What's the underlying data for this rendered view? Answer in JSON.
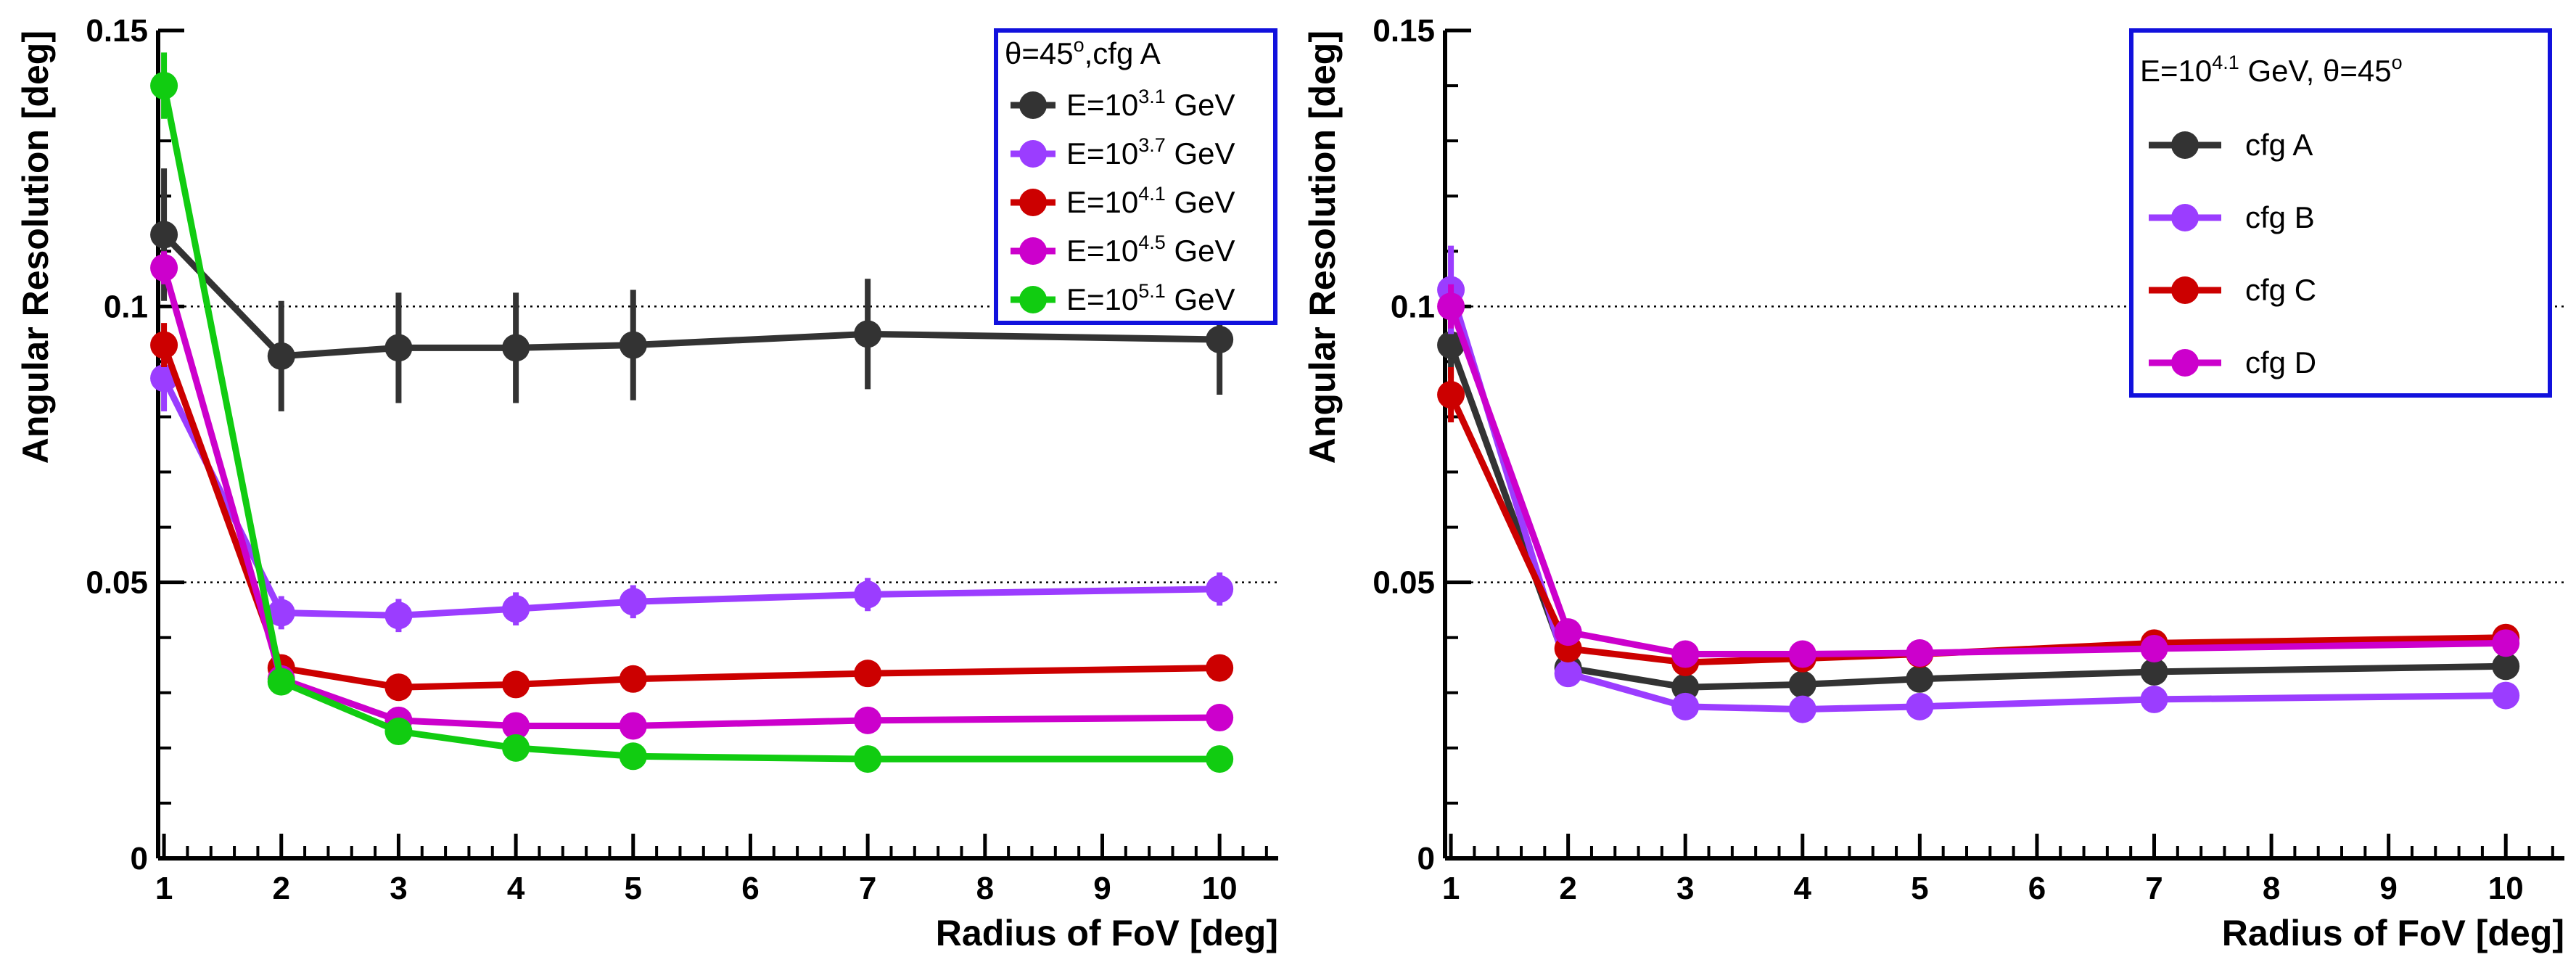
{
  "chart_data": [
    {
      "type": "line",
      "panel": "left",
      "x": [
        1,
        2,
        3,
        4,
        5,
        7,
        10
      ],
      "xlim": [
        0.95,
        10.5
      ],
      "ylim": [
        0,
        0.15
      ],
      "x_ticks": [
        "1",
        "2",
        "3",
        "4",
        "5",
        "6",
        "7",
        "8",
        "9",
        "10"
      ],
      "y_ticks": [
        "0",
        "0.05",
        "0.1",
        "0.15"
      ],
      "gridlines_y": [
        0.05,
        0.1
      ],
      "xlabel": "Radius of FoV [deg]",
      "ylabel": "Angular Resolution [deg]",
      "legend": {
        "position": "top-right",
        "header": {
          "theta": "θ=45",
          "sup": "o",
          "rest": ",cfg A"
        }
      },
      "series": [
        {
          "name": "E=10^3.1 GeV",
          "label_pre": "E=10",
          "label_sup": "3.1",
          "label_post": " GeV",
          "color": "#333333",
          "values": [
            0.113,
            0.091,
            0.0925,
            0.0925,
            0.093,
            0.095,
            0.094
          ],
          "errors": [
            0.012,
            0.01,
            0.01,
            0.01,
            0.01,
            0.01,
            0.01
          ]
        },
        {
          "name": "E=10^3.7 GeV",
          "label_pre": "E=10",
          "label_sup": "3.7",
          "label_post": " GeV",
          "color": "#9b3dff",
          "values": [
            0.087,
            0.0445,
            0.044,
            0.0452,
            0.0465,
            0.0478,
            0.0488
          ],
          "errors": [
            0.006,
            0.003,
            0.003,
            0.003,
            0.003,
            0.003,
            0.003
          ]
        },
        {
          "name": "E=10^4.1 GeV",
          "label_pre": "E=10",
          "label_sup": "4.1",
          "label_post": " GeV",
          "color": "#cc0000",
          "values": [
            0.093,
            0.0345,
            0.031,
            0.0315,
            0.0325,
            0.0335,
            0.0345
          ],
          "errors": [
            0.004,
            0.001,
            0.001,
            0.001,
            0.001,
            0.001,
            0.001
          ]
        },
        {
          "name": "E=10^4.5 GeV",
          "label_pre": "E=10",
          "label_sup": "4.5",
          "label_post": " GeV",
          "color": "#cc00cc",
          "values": [
            0.107,
            0.0325,
            0.025,
            0.024,
            0.024,
            0.025,
            0.0255
          ],
          "errors": [
            0.003,
            0.001,
            0.001,
            0.001,
            0.001,
            0.001,
            0.001
          ]
        },
        {
          "name": "E=10^5.1 GeV",
          "label_pre": "E=10",
          "label_sup": "5.1",
          "label_post": " GeV",
          "color": "#11cc11",
          "values": [
            0.14,
            0.032,
            0.023,
            0.02,
            0.0185,
            0.018,
            0.018
          ],
          "errors": [
            0.006,
            0.001,
            0.001,
            0.001,
            0.001,
            0.001,
            0.001
          ]
        }
      ]
    },
    {
      "type": "line",
      "panel": "right",
      "x": [
        1,
        2,
        3,
        4,
        5,
        7,
        10
      ],
      "xlim": [
        0.95,
        10.5
      ],
      "ylim": [
        0,
        0.15
      ],
      "x_ticks": [
        "1",
        "2",
        "3",
        "4",
        "5",
        "6",
        "7",
        "8",
        "9",
        "10"
      ],
      "y_ticks": [
        "0",
        "0.05",
        "0.1",
        "0.15"
      ],
      "gridlines_y": [
        0.05,
        0.1
      ],
      "xlabel": "Radius of FoV [deg]",
      "ylabel": "Angular Resolution [deg]",
      "legend": {
        "position": "top-right",
        "header": {
          "pre": "E=10",
          "sup": "4.1",
          "post": " GeV, θ=45",
          "sup2": "o"
        }
      },
      "series": [
        {
          "name": "cfg A",
          "color": "#333333",
          "values": [
            0.093,
            0.0345,
            0.031,
            0.0315,
            0.0325,
            0.0338,
            0.0348
          ],
          "errors": [
            0.006,
            0.001,
            0.001,
            0.001,
            0.001,
            0.001,
            0.001
          ]
        },
        {
          "name": "cfg B",
          "color": "#9b3dff",
          "values": [
            0.103,
            0.0335,
            0.0275,
            0.027,
            0.0275,
            0.0288,
            0.0295
          ],
          "errors": [
            0.008,
            0.001,
            0.001,
            0.001,
            0.001,
            0.001,
            0.001
          ]
        },
        {
          "name": "cfg C",
          "color": "#cc0000",
          "values": [
            0.084,
            0.038,
            0.0355,
            0.0362,
            0.037,
            0.039,
            0.04
          ],
          "errors": [
            0.005,
            0.001,
            0.001,
            0.001,
            0.001,
            0.001,
            0.001
          ]
        },
        {
          "name": "cfg D",
          "color": "#cc00cc",
          "values": [
            0.1,
            0.041,
            0.037,
            0.037,
            0.0372,
            0.038,
            0.039
          ],
          "errors": [
            0.004,
            0.001,
            0.001,
            0.001,
            0.001,
            0.001,
            0.001
          ]
        }
      ]
    }
  ]
}
